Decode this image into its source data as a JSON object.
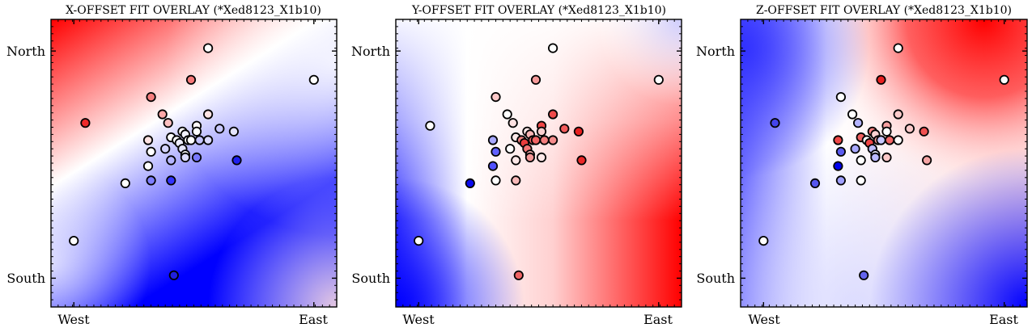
{
  "chart_data": [
    {
      "type": "scatter",
      "title": "X-OFFSET FIT OVERLAY (*Xed8123_X1b10)",
      "x_tick_labels": [
        "West",
        "East"
      ],
      "y_tick_labels": [
        "North",
        "South"
      ],
      "background": "diverging red-white-blue fitted surface; red top-left, blue bottom-center",
      "colormap": {
        "low": "#0000ff",
        "mid": "#ffffff",
        "high": "#ff0000"
      },
      "points": [
        {
          "x": 0.12,
          "y": 0.64,
          "color": "#ee2a2a"
        },
        {
          "x": 0.55,
          "y": 0.9,
          "color": "#ffffff"
        },
        {
          "x": 0.49,
          "y": 0.79,
          "color": "#f57878"
        },
        {
          "x": 0.35,
          "y": 0.73,
          "color": "#f57e7e"
        },
        {
          "x": 0.39,
          "y": 0.67,
          "color": "#fba8a8"
        },
        {
          "x": 0.41,
          "y": 0.64,
          "color": "#fcc0c0"
        },
        {
          "x": 0.55,
          "y": 0.67,
          "color": "#ffe4e4"
        },
        {
          "x": 0.51,
          "y": 0.63,
          "color": "#fff8f8"
        },
        {
          "x": 0.59,
          "y": 0.62,
          "color": "#c8c8ff"
        },
        {
          "x": 0.64,
          "y": 0.61,
          "color": "#e4e4ff"
        },
        {
          "x": 0.46,
          "y": 0.61,
          "color": "#ffffff"
        },
        {
          "x": 0.47,
          "y": 0.6,
          "color": "#f2f2ff"
        },
        {
          "x": 0.51,
          "y": 0.61,
          "color": "#ffffff"
        },
        {
          "x": 0.42,
          "y": 0.59,
          "color": "#ffffff"
        },
        {
          "x": 0.44,
          "y": 0.58,
          "color": "#ffffff"
        },
        {
          "x": 0.45,
          "y": 0.57,
          "color": "#ececff"
        },
        {
          "x": 0.48,
          "y": 0.58,
          "color": "#ffffff"
        },
        {
          "x": 0.49,
          "y": 0.58,
          "color": "#ffffff"
        },
        {
          "x": 0.52,
          "y": 0.58,
          "color": "#c4c4ff"
        },
        {
          "x": 0.55,
          "y": 0.58,
          "color": "#dadaff"
        },
        {
          "x": 0.34,
          "y": 0.58,
          "color": "#fde2e2"
        },
        {
          "x": 0.4,
          "y": 0.55,
          "color": "#d4d4ff"
        },
        {
          "x": 0.46,
          "y": 0.55,
          "color": "#e6e6ff"
        },
        {
          "x": 0.35,
          "y": 0.54,
          "color": "#ffffff"
        },
        {
          "x": 0.47,
          "y": 0.53,
          "color": "#ffffff"
        },
        {
          "x": 0.42,
          "y": 0.51,
          "color": "#b4b4ff"
        },
        {
          "x": 0.47,
          "y": 0.52,
          "color": "#dcdcff"
        },
        {
          "x": 0.51,
          "y": 0.52,
          "color": "#7878ff"
        },
        {
          "x": 0.34,
          "y": 0.49,
          "color": "#ffffff"
        },
        {
          "x": 0.65,
          "y": 0.51,
          "color": "#2020ee"
        },
        {
          "x": 0.26,
          "y": 0.43,
          "color": "#ffffff"
        },
        {
          "x": 0.35,
          "y": 0.44,
          "color": "#7e7eff"
        },
        {
          "x": 0.42,
          "y": 0.44,
          "color": "#3434ff"
        },
        {
          "x": 0.92,
          "y": 0.79,
          "color": "#ffffff"
        },
        {
          "x": 0.08,
          "y": 0.23,
          "color": "#ffffff"
        },
        {
          "x": 0.43,
          "y": 0.11,
          "color": "#2020dd"
        }
      ]
    },
    {
      "type": "scatter",
      "title": "Y-OFFSET FIT OVERLAY (*Xed8123_X1b10)",
      "x_tick_labels": [
        "West",
        "East"
      ],
      "y_tick_labels": [
        "North",
        "South"
      ],
      "background": "diverging red-white-blue fitted surface; red right side, blue bottom-left",
      "colormap": {
        "low": "#0000ff",
        "mid": "#ffffff",
        "high": "#ff0000"
      },
      "points": [
        {
          "x": 0.12,
          "y": 0.63,
          "color": "#ffffff"
        },
        {
          "x": 0.55,
          "y": 0.9,
          "color": "#ffffff"
        },
        {
          "x": 0.49,
          "y": 0.79,
          "color": "#f69a9a"
        },
        {
          "x": 0.35,
          "y": 0.73,
          "color": "#fcc8c8"
        },
        {
          "x": 0.39,
          "y": 0.67,
          "color": "#ffffff"
        },
        {
          "x": 0.41,
          "y": 0.64,
          "color": "#ffe2e2"
        },
        {
          "x": 0.55,
          "y": 0.67,
          "color": "#ee4a4a"
        },
        {
          "x": 0.51,
          "y": 0.63,
          "color": "#ef4646"
        },
        {
          "x": 0.59,
          "y": 0.62,
          "color": "#f25c5c"
        },
        {
          "x": 0.64,
          "y": 0.61,
          "color": "#e82020"
        },
        {
          "x": 0.46,
          "y": 0.61,
          "color": "#ffe8e8"
        },
        {
          "x": 0.47,
          "y": 0.6,
          "color": "#fab4b4"
        },
        {
          "x": 0.51,
          "y": 0.61,
          "color": "#fad0d0"
        },
        {
          "x": 0.42,
          "y": 0.59,
          "color": "#fde8e8"
        },
        {
          "x": 0.44,
          "y": 0.58,
          "color": "#f28080"
        },
        {
          "x": 0.45,
          "y": 0.57,
          "color": "#ea3c3c"
        },
        {
          "x": 0.48,
          "y": 0.58,
          "color": "#f06464"
        },
        {
          "x": 0.49,
          "y": 0.58,
          "color": "#f26464"
        },
        {
          "x": 0.52,
          "y": 0.58,
          "color": "#f37e7e"
        },
        {
          "x": 0.55,
          "y": 0.58,
          "color": "#f58c8c"
        },
        {
          "x": 0.34,
          "y": 0.58,
          "color": "#a8a8ff"
        },
        {
          "x": 0.4,
          "y": 0.55,
          "color": "#ffffff"
        },
        {
          "x": 0.46,
          "y": 0.55,
          "color": "#f47474"
        },
        {
          "x": 0.35,
          "y": 0.54,
          "color": "#6060ff"
        },
        {
          "x": 0.47,
          "y": 0.53,
          "color": "#fbb4b4"
        },
        {
          "x": 0.42,
          "y": 0.51,
          "color": "#fde8e8"
        },
        {
          "x": 0.47,
          "y": 0.52,
          "color": "#f49696"
        },
        {
          "x": 0.51,
          "y": 0.52,
          "color": "#fde8e8"
        },
        {
          "x": 0.34,
          "y": 0.49,
          "color": "#5050ff"
        },
        {
          "x": 0.65,
          "y": 0.51,
          "color": "#ea2828"
        },
        {
          "x": 0.26,
          "y": 0.43,
          "color": "#0a0aee"
        },
        {
          "x": 0.35,
          "y": 0.44,
          "color": "#ffffff"
        },
        {
          "x": 0.42,
          "y": 0.44,
          "color": "#f8b8b8"
        },
        {
          "x": 0.92,
          "y": 0.79,
          "color": "#ffffff"
        },
        {
          "x": 0.08,
          "y": 0.23,
          "color": "#ffffff"
        },
        {
          "x": 0.43,
          "y": 0.11,
          "color": "#f06464"
        }
      ]
    },
    {
      "type": "scatter",
      "title": "Z-OFFSET FIT OVERLAY (*Xed8123_X1b10)",
      "x_tick_labels": [
        "West",
        "East"
      ],
      "y_tick_labels": [
        "North",
        "South"
      ],
      "background": "diverging red-white-blue fitted surface; red top-right, blue left and bottom-right",
      "colormap": {
        "low": "#0000ff",
        "mid": "#ffffff",
        "high": "#ff0000"
      },
      "points": [
        {
          "x": 0.12,
          "y": 0.64,
          "color": "#4444ee"
        },
        {
          "x": 0.55,
          "y": 0.9,
          "color": "#ffffff"
        },
        {
          "x": 0.49,
          "y": 0.79,
          "color": "#e82020"
        },
        {
          "x": 0.35,
          "y": 0.73,
          "color": "#ffffff"
        },
        {
          "x": 0.39,
          "y": 0.67,
          "color": "#ffffff"
        },
        {
          "x": 0.41,
          "y": 0.64,
          "color": "#b4b4ff"
        },
        {
          "x": 0.55,
          "y": 0.67,
          "color": "#fccaca"
        },
        {
          "x": 0.51,
          "y": 0.63,
          "color": "#f7a0a0"
        },
        {
          "x": 0.59,
          "y": 0.62,
          "color": "#fbcaca"
        },
        {
          "x": 0.64,
          "y": 0.61,
          "color": "#f05050"
        },
        {
          "x": 0.46,
          "y": 0.61,
          "color": "#f47c7c"
        },
        {
          "x": 0.47,
          "y": 0.6,
          "color": "#fcd2d2"
        },
        {
          "x": 0.51,
          "y": 0.61,
          "color": "#ffffff"
        },
        {
          "x": 0.42,
          "y": 0.59,
          "color": "#f06060"
        },
        {
          "x": 0.44,
          "y": 0.58,
          "color": "#ffffff"
        },
        {
          "x": 0.45,
          "y": 0.57,
          "color": "#ef4444"
        },
        {
          "x": 0.48,
          "y": 0.58,
          "color": "#f7a2a2"
        },
        {
          "x": 0.49,
          "y": 0.58,
          "color": "#c8c8ff"
        },
        {
          "x": 0.52,
          "y": 0.58,
          "color": "#f36868"
        },
        {
          "x": 0.55,
          "y": 0.58,
          "color": "#ffffff"
        },
        {
          "x": 0.34,
          "y": 0.58,
          "color": "#ef4848"
        },
        {
          "x": 0.4,
          "y": 0.55,
          "color": "#a8a8ff"
        },
        {
          "x": 0.46,
          "y": 0.55,
          "color": "#bcbcff"
        },
        {
          "x": 0.35,
          "y": 0.54,
          "color": "#5a5aee"
        },
        {
          "x": 0.47,
          "y": 0.53,
          "color": "#ececff"
        },
        {
          "x": 0.42,
          "y": 0.51,
          "color": "#ffffff"
        },
        {
          "x": 0.47,
          "y": 0.52,
          "color": "#b8b8ff"
        },
        {
          "x": 0.51,
          "y": 0.52,
          "color": "#fcc8c8"
        },
        {
          "x": 0.34,
          "y": 0.49,
          "color": "#0000ee"
        },
        {
          "x": 0.65,
          "y": 0.51,
          "color": "#f6a4a4"
        },
        {
          "x": 0.26,
          "y": 0.43,
          "color": "#5656ee"
        },
        {
          "x": 0.35,
          "y": 0.44,
          "color": "#a0a0ff"
        },
        {
          "x": 0.42,
          "y": 0.44,
          "color": "#ffffff"
        },
        {
          "x": 0.92,
          "y": 0.79,
          "color": "#ffffff"
        },
        {
          "x": 0.08,
          "y": 0.23,
          "color": "#ffffff"
        },
        {
          "x": 0.43,
          "y": 0.11,
          "color": "#6464ee"
        }
      ]
    }
  ]
}
